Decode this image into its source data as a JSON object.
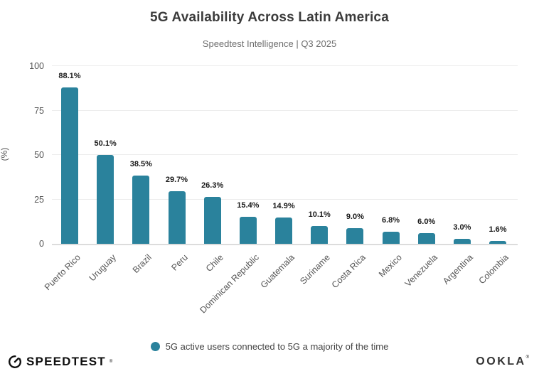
{
  "title": "5G Availability Across Latin America",
  "subtitle": "Speedtest Intelligence | Q3 2025",
  "chart_data": {
    "type": "bar",
    "categories": [
      "Puerto Rico",
      "Uruguay",
      "Brazil",
      "Peru",
      "Chile",
      "Dominican Republic",
      "Guatemala",
      "Suriname",
      "Costa Rica",
      "Mexico",
      "Venezuela",
      "Argentina",
      "Colombia"
    ],
    "values": [
      88.1,
      50.1,
      38.5,
      29.7,
      26.3,
      15.4,
      14.9,
      10.1,
      9.0,
      6.8,
      6.0,
      3.0,
      1.6
    ],
    "value_labels": [
      "88.1%",
      "50.1%",
      "38.5%",
      "29.7%",
      "26.3%",
      "15.4%",
      "14.9%",
      "10.1%",
      "9.0%",
      "6.8%",
      "6.0%",
      "3.0%",
      "1.6%"
    ],
    "title": "5G Availability Across Latin America",
    "xlabel": "",
    "ylabel": "(%)",
    "ylim": [
      0,
      100
    ],
    "yticks": [
      0,
      25,
      50,
      75,
      100
    ],
    "grid": true,
    "legend_position": "bottom",
    "bar_color": "#2A829C"
  },
  "legend": {
    "label": "5G active users connected to 5G a majority of the time",
    "marker_color": "#2A829C"
  },
  "footer": {
    "left_logo": "SPEEDTEST",
    "left_logo_mark": "®",
    "right_logo": "OOKLA",
    "right_logo_mark": "®"
  },
  "colors": {
    "bar": "#2A829C",
    "grid": "#ececec",
    "axis_line": "#dcdcdc",
    "title_text": "#3b3b3b",
    "subtitle_text": "#6e6e6e",
    "tick_text": "#555555",
    "value_text": "#1a1a1a",
    "legend_text": "#444444"
  }
}
